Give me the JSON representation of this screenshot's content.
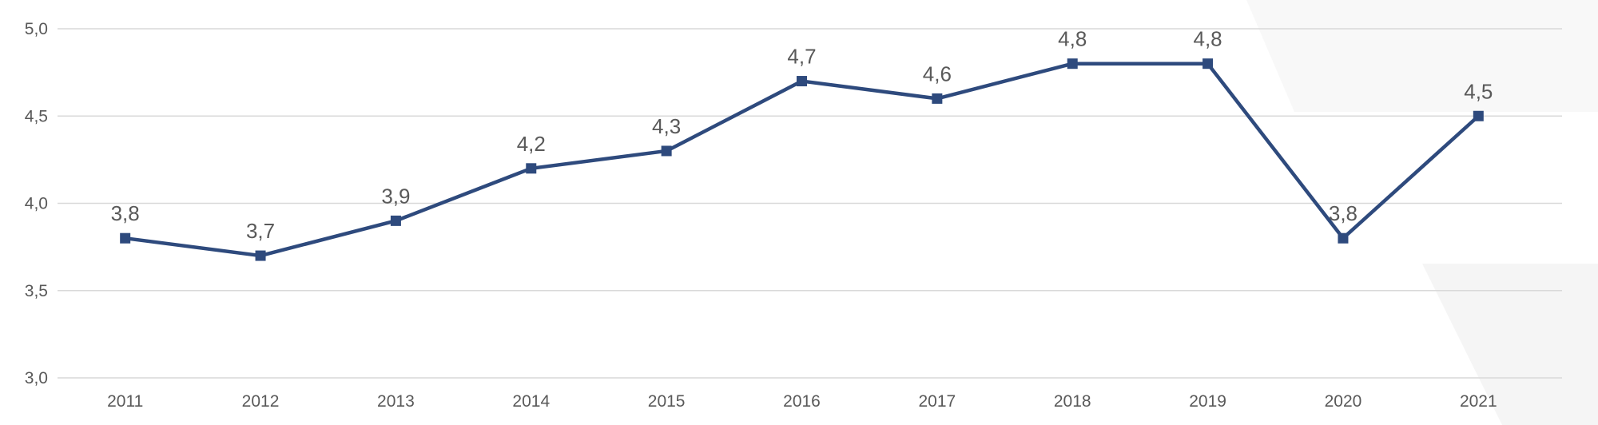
{
  "chart_data": {
    "type": "line",
    "title": "",
    "xlabel": "",
    "ylabel": "",
    "categories": [
      "2011",
      "2012",
      "2013",
      "2014",
      "2015",
      "2016",
      "2017",
      "2018",
      "2019",
      "2020",
      "2021"
    ],
    "series": [
      {
        "values": [
          3.8,
          3.7,
          3.9,
          4.2,
          4.3,
          4.7,
          4.6,
          4.8,
          4.8,
          3.8,
          4.5
        ],
        "labels": [
          "3,8",
          "3,7",
          "3,9",
          "4,2",
          "4,3",
          "4,7",
          "4,6",
          "4,8",
          "4,8",
          "3,8",
          "4,5"
        ],
        "color": "#2e4a7d",
        "marker": "square"
      }
    ],
    "ylim": [
      3.0,
      5.0
    ],
    "yticks": [
      3.0,
      3.5,
      4.0,
      4.5,
      5.0
    ],
    "ytick_labels": [
      "3,0",
      "3,5",
      "4,0",
      "4,5",
      "5,0"
    ],
    "grid": "horizontal",
    "legend": "none",
    "data_labels": "above"
  }
}
